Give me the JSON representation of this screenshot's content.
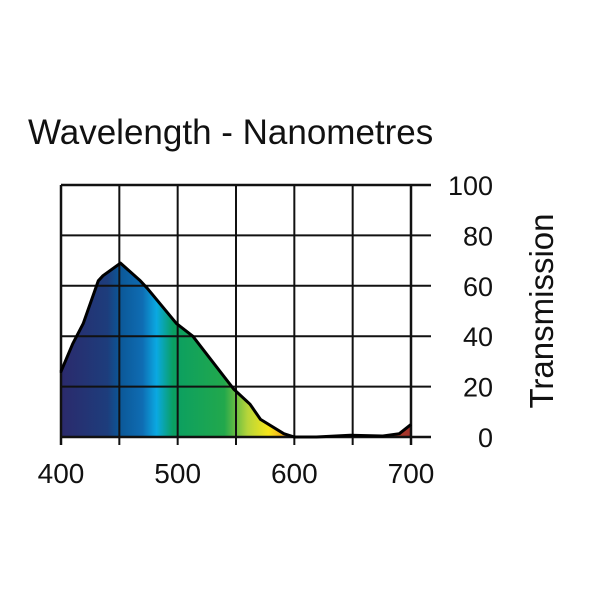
{
  "chart_data": {
    "type": "area",
    "title": "Wavelength - Nanometres",
    "xlabel": "Wavelength - Nanometres",
    "ylabel": "Transmission",
    "xlim": [
      400,
      700
    ],
    "ylim": [
      0,
      100
    ],
    "x_ticks": [
      400,
      500,
      600,
      700
    ],
    "x_grid": [
      400,
      450,
      500,
      550,
      600,
      650,
      700
    ],
    "y_ticks": [
      0,
      20,
      40,
      60,
      80,
      100
    ],
    "grid": true,
    "series": [
      {
        "name": "Transmission",
        "x": [
          400,
          410,
          419,
          432,
          436,
          451,
          468,
          474,
          499,
          513,
          548,
          562,
          571,
          591,
          600,
          619,
          648,
          676,
          690,
          700
        ],
        "y": [
          26,
          37,
          45,
          62,
          64,
          69,
          62,
          59,
          45,
          40,
          19,
          13,
          7,
          1.3,
          0,
          0,
          0.7,
          0.4,
          1.3,
          5
        ]
      }
    ],
    "fill_gradient": [
      {
        "nm": 400,
        "color": "#2b2a6c"
      },
      {
        "nm": 440,
        "color": "#1d3d7c"
      },
      {
        "nm": 450,
        "color": "#0b5797"
      },
      {
        "nm": 470,
        "color": "#0f6db3"
      },
      {
        "nm": 482,
        "color": "#0aa9e2"
      },
      {
        "nm": 496,
        "color": "#0a9f62"
      },
      {
        "nm": 540,
        "color": "#22a84c"
      },
      {
        "nm": 560,
        "color": "#b6d53a"
      },
      {
        "nm": 578,
        "color": "#f7e61a"
      },
      {
        "nm": 595,
        "color": "#f2981c"
      },
      {
        "nm": 700,
        "color": "#a3302a"
      }
    ]
  }
}
